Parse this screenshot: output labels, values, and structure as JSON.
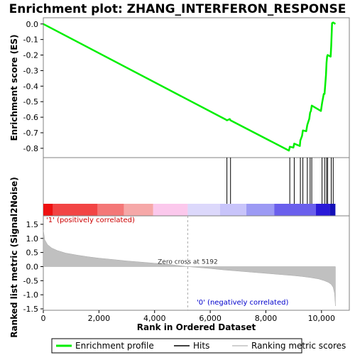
{
  "chart_data": {
    "type": "line",
    "title": "Enrichment plot: ZHANG_INTERFERON_RESPONSE",
    "xlabel": "Rank in Ordered Dataset",
    "xlim": [
      0,
      11000
    ],
    "x_ticks": [
      0,
      2000,
      4000,
      6000,
      8000,
      10000
    ],
    "x_tick_labels": [
      "0",
      "2,000",
      "4,000",
      "6,000",
      "8,000",
      "10,000"
    ],
    "es_panel": {
      "ylabel": "Enrichment score (ES)",
      "ylim": [
        -0.86,
        0.04
      ],
      "y_ticks": [
        0.0,
        -0.1,
        -0.2,
        -0.3,
        -0.4,
        -0.5,
        -0.6,
        -0.7,
        -0.8
      ],
      "y_tick_labels": [
        "0.0",
        "-0.1",
        "-0.2",
        "-0.3",
        "-0.4",
        "-0.5",
        "-0.6",
        "-0.7",
        "-0.8"
      ],
      "series": [
        {
          "name": "Enrichment profile",
          "color": "#00ee00",
          "x": [
            0,
            6560,
            6600,
            6700,
            6730,
            8830,
            8860,
            8990,
            9020,
            9220,
            9240,
            9300,
            9330,
            9450,
            9490,
            9560,
            9590,
            9620,
            9650,
            9980,
            10020,
            10080,
            10110,
            10160,
            10180,
            10200,
            10220,
            10330,
            10350,
            10380,
            10420,
            10500
          ],
          "y": [
            0.0,
            -0.615,
            -0.62,
            -0.612,
            -0.62,
            -0.815,
            -0.79,
            -0.795,
            -0.77,
            -0.785,
            -0.75,
            -0.72,
            -0.685,
            -0.69,
            -0.65,
            -0.61,
            -0.57,
            -0.56,
            -0.525,
            -0.56,
            -0.51,
            -0.45,
            -0.45,
            -0.33,
            -0.25,
            -0.21,
            -0.2,
            -0.21,
            -0.14,
            0.005,
            0.01,
            0.0
          ]
        }
      ]
    },
    "hits": {
      "name": "Hits",
      "color": "#000000",
      "x": [
        6600,
        6730,
        8860,
        9020,
        9240,
        9330,
        9490,
        9590,
        9650,
        10020,
        10110,
        10180,
        10220,
        10350,
        10420
      ]
    },
    "ranked_panel": {
      "ylabel": "Ranked list metric (Signal2Noise)",
      "ylim": [
        -1.55,
        1.8
      ],
      "y_ticks": [
        1.5,
        1.0,
        0.5,
        0.0,
        -0.5,
        -1.0,
        -1.5
      ],
      "y_tick_labels": [
        "1.5",
        "1.0",
        "0.5",
        "0.0",
        "-0.5",
        "-1.0",
        "-1.5"
      ],
      "series": [
        {
          "name": "Ranking metric scores",
          "color": "#c0c0c0",
          "x": [
            0,
            50,
            150,
            300,
            500,
            800,
            1200,
            1600,
            2000,
            2500,
            3000,
            3500,
            4000,
            4500,
            5192,
            6000,
            6500,
            7000,
            7500,
            8000,
            8500,
            9000,
            9300,
            9600,
            9900,
            10100,
            10250,
            10350,
            10420,
            10470,
            10500
          ],
          "y": [
            1.3,
            0.95,
            0.78,
            0.66,
            0.57,
            0.48,
            0.41,
            0.35,
            0.3,
            0.25,
            0.2,
            0.16,
            0.12,
            0.08,
            0.0,
            -0.07,
            -0.12,
            -0.16,
            -0.2,
            -0.24,
            -0.28,
            -0.32,
            -0.35,
            -0.39,
            -0.44,
            -0.5,
            -0.56,
            -0.63,
            -0.74,
            -0.95,
            -1.4
          ]
        }
      ],
      "zero_cross_label": "Zero cross at 5192",
      "zero_cross_x": 5192,
      "positive_label": "'1' (positively correlated)",
      "negative_label": "'0' (negatively correlated)"
    },
    "color_bar": {
      "segments": [
        {
          "x0": 0,
          "x1": 350,
          "color": "#ee1111"
        },
        {
          "x0": 350,
          "x1": 1950,
          "color": "#f24444"
        },
        {
          "x0": 1950,
          "x1": 2900,
          "color": "#f47777"
        },
        {
          "x0": 2900,
          "x1": 3950,
          "color": "#f6a8a8"
        },
        {
          "x0": 3950,
          "x1": 5192,
          "color": "#fbc8ec"
        },
        {
          "x0": 5192,
          "x1": 6350,
          "color": "#dcd8fb"
        },
        {
          "x0": 6350,
          "x1": 7300,
          "color": "#c8c4fa"
        },
        {
          "x0": 7300,
          "x1": 8300,
          "color": "#9c9af4"
        },
        {
          "x0": 8300,
          "x1": 9800,
          "color": "#6a5fec"
        },
        {
          "x0": 9800,
          "x1": 10300,
          "color": "#2a1ad8"
        },
        {
          "x0": 10300,
          "x1": 10500,
          "color": "#1410b8"
        }
      ]
    },
    "legend": {
      "position": "bottom",
      "items": [
        {
          "name": "Enrichment profile",
          "color": "#00ee00"
        },
        {
          "name": "Hits",
          "color": "#000000"
        },
        {
          "name": "Ranking metric scores",
          "color": "#c0c0c0"
        }
      ]
    }
  }
}
